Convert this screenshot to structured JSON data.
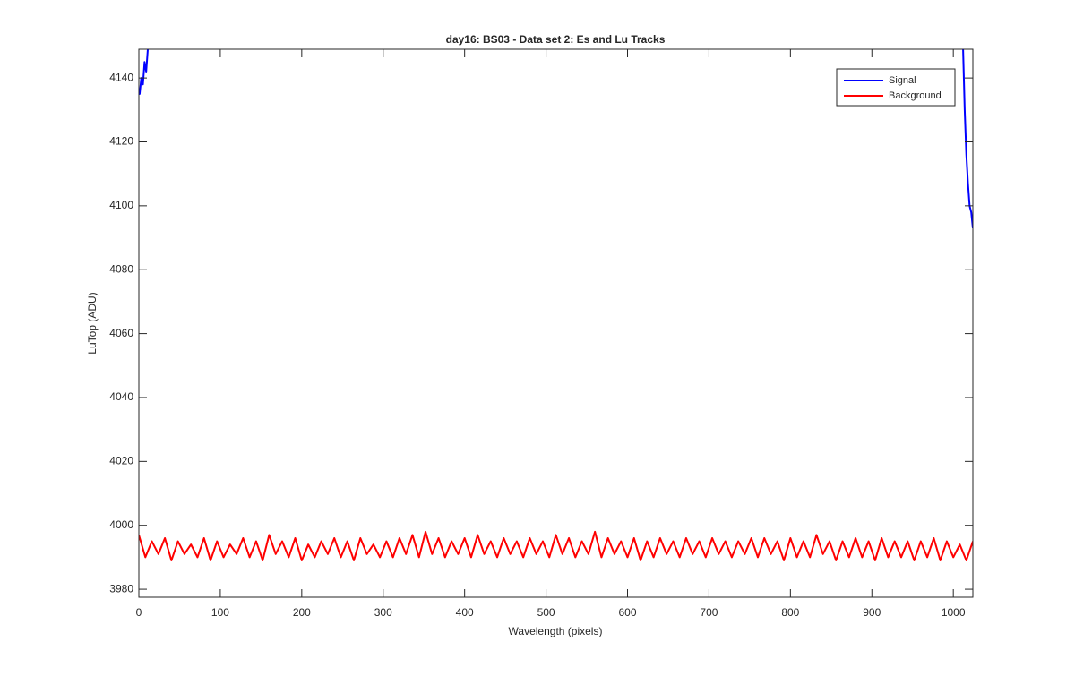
{
  "chart_data": {
    "type": "line",
    "title": "day16: BS03 - Data set 2: Es and Lu Tracks",
    "x_label": "Wavelength (pixels)",
    "y_label": "LuTop (ADU)",
    "xlim": [
      0,
      1024
    ],
    "ylim": [
      3977.5,
      4149
    ],
    "xticks": [
      0,
      100,
      200,
      300,
      400,
      500,
      600,
      700,
      800,
      900,
      1000
    ],
    "yticks": [
      3980,
      4000,
      4020,
      4040,
      4060,
      4080,
      4100,
      4120,
      4140
    ],
    "grid": false,
    "legend": "top-right",
    "series": [
      {
        "name": "Signal",
        "color": "#0000ff",
        "x": [
          0,
          1,
          3,
          5,
          7,
          9,
          11,
          512,
          1012,
          1014,
          1016,
          1018,
          1020,
          1022,
          1024
        ],
        "values": [
          4136,
          4135,
          4140,
          4138,
          4145,
          4142,
          4149,
          null,
          4149,
          4130,
          4116,
          4107,
          4100,
          4098,
          4093
        ]
      },
      {
        "name": "Background",
        "color": "#ff0000",
        "x": [
          0,
          8,
          16,
          24,
          32,
          40,
          48,
          56,
          64,
          72,
          80,
          88,
          96,
          104,
          112,
          120,
          128,
          136,
          144,
          152,
          160,
          168,
          176,
          184,
          192,
          200,
          208,
          216,
          224,
          232,
          240,
          248,
          256,
          264,
          272,
          280,
          288,
          296,
          304,
          312,
          320,
          328,
          336,
          344,
          352,
          360,
          368,
          376,
          384,
          392,
          400,
          408,
          416,
          424,
          432,
          440,
          448,
          456,
          464,
          472,
          480,
          488,
          496,
          504,
          512,
          520,
          528,
          536,
          544,
          552,
          560,
          568,
          576,
          584,
          592,
          600,
          608,
          616,
          624,
          632,
          640,
          648,
          656,
          664,
          672,
          680,
          688,
          696,
          704,
          712,
          720,
          728,
          736,
          744,
          752,
          760,
          768,
          776,
          784,
          792,
          800,
          808,
          816,
          824,
          832,
          840,
          848,
          856,
          864,
          872,
          880,
          888,
          896,
          904,
          912,
          920,
          928,
          936,
          944,
          952,
          960,
          968,
          976,
          984,
          992,
          1000,
          1008,
          1016,
          1024
        ],
        "values": [
          3997,
          3990,
          3995,
          3991,
          3996,
          3989,
          3995,
          3991,
          3994,
          3990,
          3996,
          3989,
          3995,
          3990,
          3994,
          3991,
          3996,
          3990,
          3995,
          3989,
          3997,
          3991,
          3995,
          3990,
          3996,
          3989,
          3994,
          3990,
          3995,
          3991,
          3996,
          3990,
          3995,
          3989,
          3996,
          3991,
          3994,
          3990,
          3995,
          3990,
          3996,
          3991,
          3997,
          3990,
          3998,
          3991,
          3996,
          3990,
          3995,
          3991,
          3996,
          3990,
          3997,
          3991,
          3995,
          3990,
          3996,
          3991,
          3995,
          3990,
          3996,
          3991,
          3995,
          3990,
          3997,
          3991,
          3996,
          3990,
          3995,
          3991,
          3998,
          3990,
          3996,
          3991,
          3995,
          3990,
          3996,
          3989,
          3995,
          3990,
          3996,
          3991,
          3995,
          3990,
          3996,
          3991,
          3995,
          3990,
          3996,
          3991,
          3995,
          3990,
          3995,
          3991,
          3996,
          3990,
          3996,
          3991,
          3995,
          3989,
          3996,
          3990,
          3995,
          3990,
          3997,
          3991,
          3995,
          3989,
          3995,
          3990,
          3996,
          3990,
          3995,
          3989,
          3996,
          3990,
          3995,
          3990,
          3995,
          3989,
          3995,
          3990,
          3996,
          3989,
          3995,
          3990,
          3994,
          3989,
          3995
        ]
      }
    ]
  }
}
